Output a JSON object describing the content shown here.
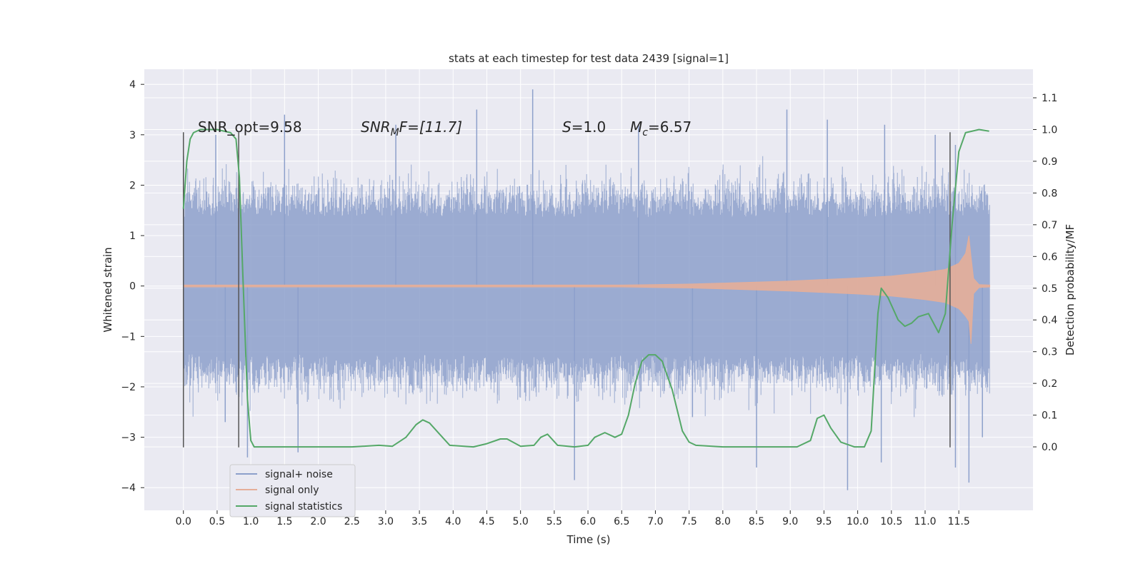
{
  "chart_data": {
    "type": "line",
    "title": "stats at each timestep for test data 2439 [signal=1]",
    "xlabel": "Time (s)",
    "ylabel": "Whitened strain",
    "ylabel_right": "Detection probability/MF",
    "xlim": [
      -0.58,
      12.6
    ],
    "ylim": [
      -4.45,
      4.3
    ],
    "ylim_right": [
      -0.2,
      1.19
    ],
    "x_ticks": [
      "0.0",
      "0.5",
      "1.0",
      "1.5",
      "2.0",
      "2.5",
      "3.0",
      "3.5",
      "4.0",
      "4.5",
      "5.0",
      "5.5",
      "6.0",
      "6.5",
      "7.0",
      "7.5",
      "8.0",
      "8.5",
      "9.0",
      "9.5",
      "10.0",
      "10.5",
      "11.0",
      "11.5"
    ],
    "y_ticks": [
      "4",
      "3",
      "2",
      "1",
      "0",
      "−1",
      "−2",
      "−3",
      "−4"
    ],
    "y_ticks_right": [
      "1.1",
      "1.0",
      "0.9",
      "0.8",
      "0.7",
      "0.6",
      "0.5",
      "0.4",
      "0.3",
      "0.2",
      "0.1",
      "0.0"
    ],
    "annotations": {
      "snr_opt": "SNR_opt=9.58",
      "snr_mf_base": "SNR",
      "snr_mf_sub": "M",
      "snr_mf_tail": "F=[11.7]",
      "s_italic": "S",
      "s_value": "=1.0",
      "mc_base": "M",
      "mc_sub": "c",
      "mc_value": "=6.57"
    },
    "legend": {
      "position": "lower-left",
      "entries": [
        "signal+ noise",
        "signal only",
        "signal statistics"
      ]
    },
    "colors": {
      "noise": "#8da0cb",
      "signal": "#e5ae98",
      "stat": "#55a868",
      "background": "#eaeaf2",
      "grid": "#ffffff",
      "vline": "#555555"
    },
    "vertical_markers_x": [
      0.0,
      0.82,
      11.37
    ],
    "series": [
      {
        "name": "signal+ noise",
        "x_range": [
          0.0,
          11.96
        ],
        "typical_envelope": [
          -1.35,
          1.35
        ],
        "peak_points": [
          [
            0.48,
            3.0
          ],
          [
            1.5,
            3.4
          ],
          [
            3.15,
            3.2
          ],
          [
            4.35,
            3.5
          ],
          [
            5.18,
            3.9
          ],
          [
            6.75,
            3.2
          ],
          [
            8.95,
            3.5
          ],
          [
            9.55,
            3.3
          ],
          [
            10.4,
            3.2
          ],
          [
            11.15,
            3.0
          ],
          [
            11.45,
            2.8
          ],
          [
            0.62,
            -2.7
          ],
          [
            0.95,
            -3.4
          ],
          [
            1.7,
            -3.3
          ],
          [
            5.8,
            -3.85
          ],
          [
            7.55,
            -2.6
          ],
          [
            8.5,
            -3.6
          ],
          [
            9.85,
            -4.05
          ],
          [
            10.35,
            -3.5
          ],
          [
            11.45,
            -3.6
          ],
          [
            11.65,
            -3.9
          ],
          [
            11.85,
            -3.0
          ]
        ]
      },
      {
        "name": "signal only",
        "x": [
          0.0,
          5.0,
          6.5,
          7.0,
          7.5,
          8.0,
          8.5,
          9.0,
          9.5,
          10.0,
          10.5,
          11.0,
          11.3,
          11.5,
          11.6,
          11.65,
          11.68,
          11.72,
          11.8,
          11.96
        ],
        "upper": [
          0.02,
          0.02,
          0.02,
          0.03,
          0.04,
          0.06,
          0.08,
          0.1,
          0.13,
          0.16,
          0.2,
          0.27,
          0.33,
          0.45,
          0.65,
          1.0,
          0.6,
          0.15,
          0.03,
          0.02
        ],
        "lower": [
          -0.02,
          -0.02,
          -0.02,
          -0.03,
          -0.04,
          -0.06,
          -0.08,
          -0.1,
          -0.13,
          -0.16,
          -0.2,
          -0.27,
          -0.33,
          -0.45,
          -0.6,
          -0.7,
          -1.15,
          -0.15,
          -0.03,
          -0.02
        ]
      },
      {
        "name": "signal statistics",
        "x": [
          0.0,
          0.05,
          0.1,
          0.15,
          0.25,
          0.5,
          0.7,
          0.78,
          0.83,
          0.88,
          0.95,
          1.0,
          1.05,
          1.2,
          2.5,
          2.9,
          3.1,
          3.3,
          3.45,
          3.55,
          3.65,
          3.8,
          3.95,
          4.3,
          4.5,
          4.7,
          4.8,
          5.0,
          5.2,
          5.3,
          5.4,
          5.55,
          5.8,
          6.0,
          6.1,
          6.25,
          6.4,
          6.5,
          6.6,
          6.7,
          6.8,
          6.9,
          7.0,
          7.1,
          7.25,
          7.4,
          7.5,
          7.6,
          8.0,
          9.1,
          9.3,
          9.4,
          9.5,
          9.6,
          9.75,
          9.95,
          10.1,
          10.2,
          10.3,
          10.35,
          10.45,
          10.6,
          10.7,
          10.8,
          10.9,
          11.05,
          11.1,
          11.2,
          11.3,
          11.4,
          11.5,
          11.6,
          11.8,
          11.95
        ],
        "y": [
          0.75,
          0.9,
          0.97,
          0.99,
          1.0,
          1.0,
          0.99,
          0.97,
          0.85,
          0.55,
          0.15,
          0.02,
          0.0,
          0.0,
          0.0,
          0.005,
          0.002,
          0.03,
          0.07,
          0.085,
          0.075,
          0.04,
          0.005,
          0.0,
          0.01,
          0.025,
          0.025,
          0.002,
          0.005,
          0.03,
          0.04,
          0.005,
          0.0,
          0.005,
          0.03,
          0.045,
          0.03,
          0.04,
          0.1,
          0.2,
          0.27,
          0.29,
          0.29,
          0.27,
          0.18,
          0.05,
          0.015,
          0.005,
          0.0,
          0.0,
          0.02,
          0.09,
          0.1,
          0.06,
          0.015,
          0.0,
          0.0,
          0.05,
          0.42,
          0.5,
          0.47,
          0.4,
          0.38,
          0.39,
          0.41,
          0.42,
          0.4,
          0.36,
          0.42,
          0.7,
          0.93,
          0.99,
          1.0,
          0.995
        ]
      }
    ]
  }
}
